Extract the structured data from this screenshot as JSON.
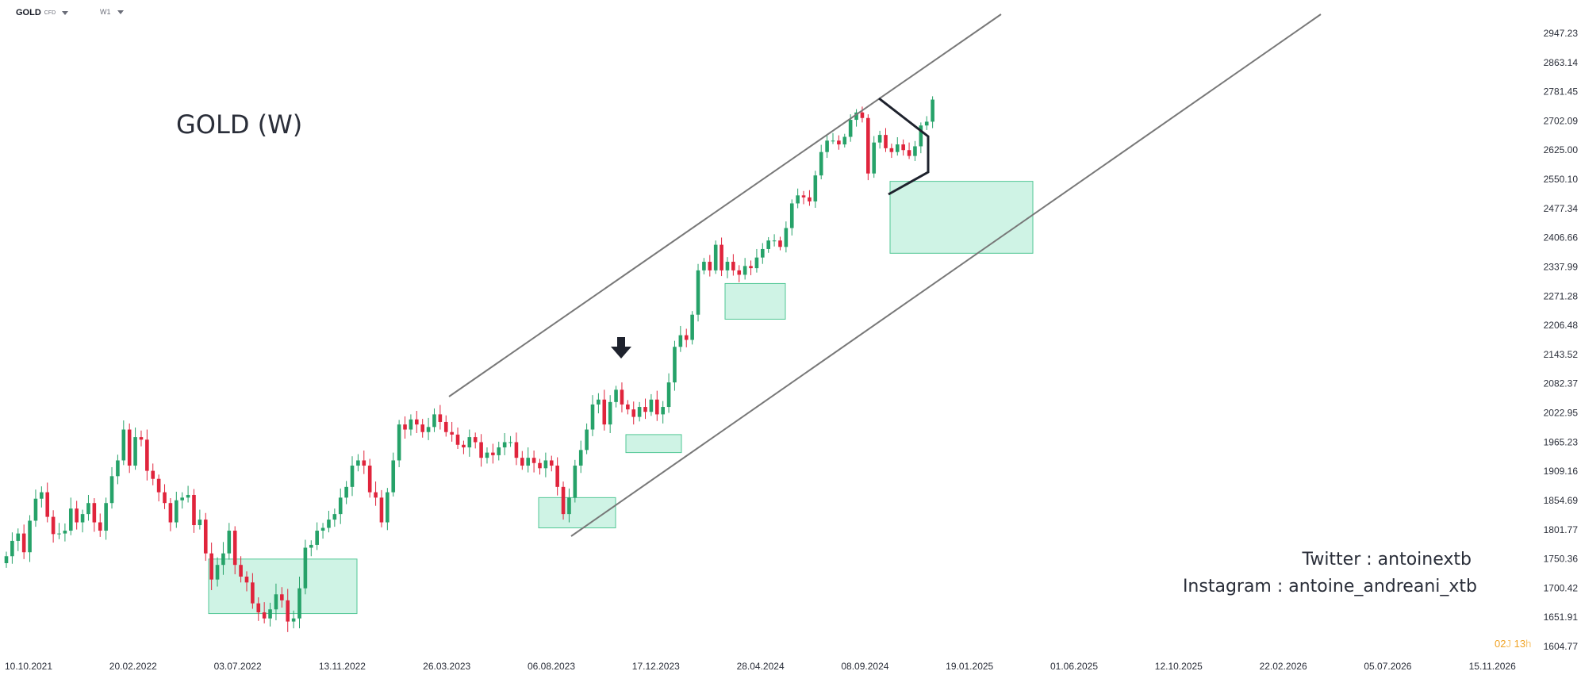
{
  "toolbar": {
    "symbol": "GOLD",
    "symbol_type": "CFD",
    "timeframe": "W1"
  },
  "annotations": {
    "title": "GOLD (W)",
    "twitter": "Twitter : antoinextb",
    "instagram": "Instagram : antoine_andreani_xtb",
    "countdown_days": "02",
    "countdown_day_unit": "J",
    "countdown_hours": "13",
    "countdown_hour_unit": "h"
  },
  "colors": {
    "up": "#26a269",
    "down": "#e0243c",
    "zone_fill": "#bfefdc",
    "zone_stroke": "#52c795",
    "channel": "#787878",
    "triangle": "#1e222d"
  },
  "chart_data": {
    "type": "candlestick",
    "title": "GOLD (W)",
    "ylim": [
      1604.77,
      2990
    ],
    "y_ticks": [
      1604.77,
      1651.91,
      1700.42,
      1750.36,
      1801.77,
      1854.69,
      1909.16,
      1965.23,
      2022.95,
      2082.37,
      2143.52,
      2206.48,
      2271.28,
      2337.99,
      2406.66,
      2477.34,
      2550.1,
      2625.0,
      2702.09,
      2781.45,
      2863.14,
      2947.23
    ],
    "x_ticks": [
      "10.10.2021",
      "20.02.2022",
      "03.07.2022",
      "13.11.2022",
      "26.03.2023",
      "06.08.2023",
      "17.12.2023",
      "28.04.2024",
      "08.09.2024",
      "19.01.2025",
      "01.06.2025",
      "12.10.2025",
      "22.02.2026",
      "05.07.2026",
      "15.11.2026"
    ],
    "closes": [
      1755,
      1782,
      1795,
      1762,
      1818,
      1858,
      1870,
      1825,
      1794,
      1795,
      1800,
      1840,
      1815,
      1830,
      1850,
      1815,
      1800,
      1850,
      1900,
      1930,
      1990,
      1920,
      1975,
      1970,
      1910,
      1895,
      1870,
      1850,
      1815,
      1855,
      1860,
      1865,
      1810,
      1820,
      1760,
      1715,
      1740,
      1760,
      1800,
      1740,
      1720,
      1710,
      1675,
      1660,
      1650,
      1665,
      1690,
      1680,
      1645,
      1650,
      1700,
      1770,
      1775,
      1800,
      1805,
      1820,
      1830,
      1860,
      1880,
      1920,
      1930,
      1920,
      1870,
      1860,
      1815,
      1870,
      1930,
      2000,
      1990,
      2010,
      2000,
      1985,
      1995,
      2020,
      2005,
      1985,
      1980,
      1960,
      1955,
      1975,
      1965,
      1935,
      1945,
      1940,
      1955,
      1965,
      1965,
      1935,
      1920,
      1935,
      1925,
      1915,
      1930,
      1920,
      1880,
      1830,
      1860,
      1920,
      1950,
      1990,
      2040,
      2050,
      2000,
      2045,
      2070,
      2040,
      2030,
      2015,
      2035,
      2025,
      2050,
      2020,
      2035,
      2085,
      2160,
      2185,
      2175,
      2230,
      2330,
      2350,
      2330,
      2390,
      2330,
      2350,
      2330,
      2320,
      2340,
      2335,
      2360,
      2380,
      2400,
      2400,
      2385,
      2430,
      2490,
      2510,
      2505,
      2495,
      2560,
      2620,
      2650,
      2650,
      2640,
      2660,
      2705,
      2725,
      2710,
      2565,
      2645,
      2665,
      2630,
      2620,
      2640,
      2625,
      2610,
      2635,
      2690,
      2700,
      2760
    ]
  }
}
